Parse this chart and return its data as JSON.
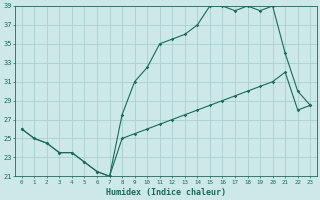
{
  "xlabel": "Humidex (Indice chaleur)",
  "line1_x": [
    0,
    1,
    2,
    3,
    4,
    5,
    6,
    7,
    8,
    9,
    10,
    11,
    12,
    13,
    14,
    15,
    16,
    17,
    18,
    19,
    20,
    21,
    22,
    23
  ],
  "line1_y": [
    26,
    25,
    24.5,
    23.5,
    23.5,
    22.5,
    21.5,
    21,
    25,
    25.5,
    26,
    26.5,
    27,
    27.5,
    28,
    28.5,
    29,
    29.5,
    30,
    30.5,
    31,
    32,
    28,
    28.5
  ],
  "line2_x": [
    0,
    1,
    2,
    3,
    4,
    5,
    6,
    7,
    8,
    9,
    10,
    11,
    12,
    13,
    14,
    15,
    16,
    17,
    18,
    19,
    20,
    21,
    22,
    23
  ],
  "line2_y": [
    26,
    25,
    24.5,
    23.5,
    23.5,
    22.5,
    21.5,
    21,
    27.5,
    31,
    32.5,
    35,
    35.5,
    36,
    37,
    39,
    39,
    38.5,
    39,
    38.5,
    39,
    34,
    30,
    28.5
  ],
  "line_color": "#1a6b5a",
  "bg_color": "#cce8e8",
  "grid_color": "#aacfcf",
  "xlim": [
    -0.5,
    23.5
  ],
  "ylim": [
    21,
    39
  ],
  "yticks": [
    21,
    23,
    25,
    27,
    29,
    31,
    33,
    35,
    37,
    39
  ],
  "xticks": [
    0,
    1,
    2,
    3,
    4,
    5,
    6,
    7,
    8,
    9,
    10,
    11,
    12,
    13,
    14,
    15,
    16,
    17,
    18,
    19,
    20,
    21,
    22,
    23
  ]
}
